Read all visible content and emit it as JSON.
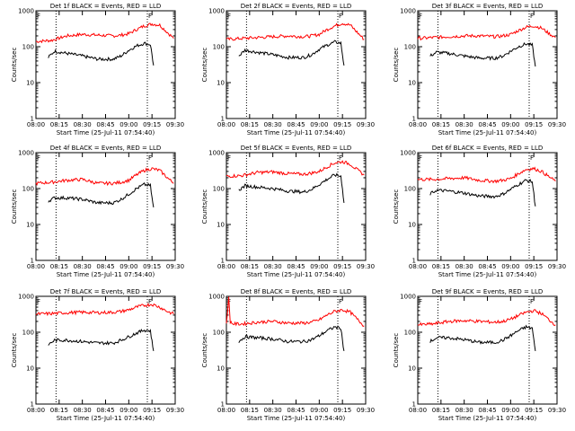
{
  "chart_data": [
    {
      "type": "line",
      "title": "Det 1f BLACK = Events, RED = LLD",
      "xlabel": "Start Time (25-Jul-11 07:54:40)",
      "ylabel": "Counts/sec",
      "yscale": "log",
      "ylim": [
        1,
        1000
      ],
      "xlim": [
        0,
        90
      ],
      "xticks": [
        "08:00",
        "08:15",
        "08:30",
        "08:45",
        "09:00",
        "09:15",
        "09:30"
      ],
      "yticks": [
        "1",
        "10",
        "100",
        "1000"
      ],
      "markers": [
        "F",
        "F"
      ],
      "series": [
        {
          "color": "#ff0000",
          "x": [
            0,
            10,
            20,
            30,
            40,
            50,
            55,
            60,
            65,
            70,
            75,
            80,
            85,
            89
          ],
          "values": [
            140,
            150,
            200,
            220,
            210,
            200,
            210,
            230,
            300,
            380,
            430,
            400,
            250,
            170
          ]
        },
        {
          "color": "#000000",
          "x": [
            8,
            12,
            20,
            30,
            40,
            50,
            55,
            60,
            65,
            70,
            74,
            75,
            76
          ],
          "values": [
            50,
            75,
            65,
            55,
            45,
            45,
            55,
            80,
            105,
            125,
            115,
            60,
            30
          ]
        }
      ]
    },
    {
      "type": "line",
      "title": "Det 2f BLACK = Events, RED = LLD",
      "xlabel": "Start Time (25-Jul-11 07:54:40)",
      "ylabel": "Counts/sec",
      "yscale": "log",
      "ylim": [
        1,
        1000
      ],
      "xlim": [
        0,
        90
      ],
      "xticks": [
        "08:00",
        "08:15",
        "08:30",
        "08:45",
        "09:00",
        "09:15",
        "09:30"
      ],
      "yticks": [
        "1",
        "10",
        "100",
        "1000"
      ],
      "markers": [
        "F",
        "F"
      ],
      "series": [
        {
          "color": "#ff0000",
          "x": [
            0,
            10,
            20,
            30,
            40,
            50,
            55,
            60,
            65,
            70,
            75,
            80,
            85,
            89
          ],
          "values": [
            160,
            170,
            180,
            190,
            200,
            190,
            200,
            220,
            300,
            380,
            450,
            400,
            240,
            160
          ]
        },
        {
          "color": "#000000",
          "x": [
            8,
            12,
            20,
            30,
            40,
            50,
            55,
            60,
            65,
            70,
            74,
            75,
            76
          ],
          "values": [
            55,
            80,
            70,
            60,
            50,
            50,
            60,
            85,
            110,
            135,
            125,
            60,
            30
          ]
        }
      ]
    },
    {
      "type": "line",
      "title": "Det 3f BLACK = Events, RED = LLD",
      "xlabel": "Start Time (25-Jul-11 07:54:40)",
      "ylabel": "Counts/sec",
      "yscale": "log",
      "ylim": [
        1,
        1000
      ],
      "xlim": [
        0,
        90
      ],
      "xticks": [
        "08:00",
        "08:15",
        "08:30",
        "08:45",
        "09:00",
        "09:15",
        "09:30"
      ],
      "yticks": [
        "1",
        "10",
        "100",
        "1000"
      ],
      "markers": [
        "F",
        "F"
      ],
      "series": [
        {
          "color": "#ff0000",
          "x": [
            0,
            10,
            20,
            30,
            40,
            50,
            55,
            60,
            65,
            70,
            75,
            80,
            85,
            89
          ],
          "values": [
            170,
            180,
            190,
            200,
            200,
            190,
            200,
            220,
            280,
            350,
            380,
            330,
            230,
            180
          ]
        },
        {
          "color": "#000000",
          "x": [
            8,
            12,
            20,
            30,
            40,
            50,
            55,
            60,
            65,
            70,
            74,
            75,
            76
          ],
          "values": [
            55,
            70,
            65,
            55,
            48,
            48,
            55,
            75,
            100,
            120,
            110,
            55,
            28
          ]
        }
      ]
    },
    {
      "type": "line",
      "title": "Det 4f BLACK = Events, RED = LLD",
      "xlabel": "Start Time (25-Jul-11 07:54:40)",
      "ylabel": "Counts/sec",
      "yscale": "log",
      "ylim": [
        1,
        1000
      ],
      "xlim": [
        0,
        90
      ],
      "xticks": [
        "08:00",
        "08:15",
        "08:30",
        "08:45",
        "09:00",
        "09:15",
        "09:30"
      ],
      "yticks": [
        "1",
        "10",
        "100",
        "1000"
      ],
      "markers": [
        "F",
        "F"
      ],
      "series": [
        {
          "color": "#ff0000",
          "x": [
            0,
            10,
            20,
            30,
            40,
            50,
            55,
            60,
            65,
            70,
            75,
            80,
            85,
            89
          ],
          "values": [
            140,
            150,
            170,
            180,
            140,
            140,
            150,
            170,
            240,
            320,
            360,
            320,
            200,
            140
          ]
        },
        {
          "color": "#000000",
          "x": [
            8,
            12,
            20,
            30,
            40,
            50,
            55,
            60,
            65,
            70,
            74,
            75,
            76
          ],
          "values": [
            45,
            55,
            55,
            50,
            40,
            40,
            50,
            70,
            100,
            130,
            120,
            55,
            30
          ]
        }
      ]
    },
    {
      "type": "line",
      "title": "Det 5f BLACK = Events, RED = LLD",
      "xlabel": "Start Time (25-Jul-11 07:54:40)",
      "ylabel": "Counts/sec",
      "yscale": "log",
      "ylim": [
        1,
        1000
      ],
      "xlim": [
        0,
        90
      ],
      "xticks": [
        "08:00",
        "08:15",
        "08:30",
        "08:45",
        "09:00",
        "09:15",
        "09:30"
      ],
      "yticks": [
        "1",
        "10",
        "100",
        "1000"
      ],
      "markers": [
        "F",
        "F"
      ],
      "series": [
        {
          "color": "#ff0000",
          "x": [
            0,
            10,
            20,
            30,
            40,
            50,
            55,
            60,
            65,
            70,
            75,
            80,
            85,
            89
          ],
          "values": [
            220,
            230,
            280,
            290,
            260,
            250,
            270,
            300,
            400,
            520,
            560,
            480,
            320,
            240
          ]
        },
        {
          "color": "#000000",
          "x": [
            8,
            12,
            20,
            30,
            40,
            50,
            55,
            60,
            65,
            70,
            74,
            75,
            76
          ],
          "values": [
            90,
            120,
            110,
            100,
            85,
            80,
            95,
            130,
            180,
            240,
            220,
            100,
            40
          ]
        }
      ]
    },
    {
      "type": "line",
      "title": "Det 6f BLACK = Events, RED = LLD",
      "xlabel": "Start Time (25-Jul-11 07:54:40)",
      "ylabel": "Counts/sec",
      "yscale": "log",
      "ylim": [
        1,
        1000
      ],
      "xlim": [
        0,
        90
      ],
      "xticks": [
        "08:00",
        "08:15",
        "08:30",
        "08:45",
        "09:00",
        "09:15",
        "09:30"
      ],
      "yticks": [
        "1",
        "10",
        "100",
        "1000"
      ],
      "markers": [
        "F",
        "F"
      ],
      "series": [
        {
          "color": "#ff0000",
          "x": [
            0,
            10,
            20,
            30,
            40,
            50,
            55,
            60,
            65,
            70,
            75,
            80,
            85,
            89
          ],
          "values": [
            180,
            180,
            190,
            200,
            170,
            160,
            170,
            190,
            260,
            340,
            360,
            300,
            210,
            160
          ]
        },
        {
          "color": "#000000",
          "x": [
            8,
            12,
            20,
            30,
            40,
            50,
            55,
            60,
            65,
            70,
            74,
            75,
            76
          ],
          "values": [
            70,
            90,
            85,
            75,
            62,
            60,
            70,
            95,
            130,
            170,
            155,
            70,
            32
          ]
        }
      ]
    },
    {
      "type": "line",
      "title": "Det 7f BLACK = Events, RED = LLD",
      "xlabel": "Start Time (25-Jul-11 07:54:40)",
      "ylabel": "Counts/sec",
      "yscale": "log",
      "ylim": [
        1,
        1000
      ],
      "xlim": [
        0,
        90
      ],
      "xticks": [
        "08:00",
        "08:15",
        "08:30",
        "08:45",
        "09:00",
        "09:15",
        "09:30"
      ],
      "yticks": [
        "1",
        "10",
        "100",
        "1000"
      ],
      "markers": [
        "F",
        "F"
      ],
      "series": [
        {
          "color": "#ff0000",
          "x": [
            0,
            10,
            20,
            30,
            40,
            50,
            55,
            60,
            65,
            70,
            75,
            80,
            85,
            89
          ],
          "values": [
            320,
            330,
            350,
            360,
            350,
            360,
            380,
            420,
            500,
            560,
            600,
            500,
            380,
            320
          ]
        },
        {
          "color": "#000000",
          "x": [
            8,
            12,
            20,
            30,
            40,
            50,
            55,
            60,
            65,
            70,
            74,
            75,
            76
          ],
          "values": [
            45,
            60,
            60,
            55,
            50,
            50,
            60,
            75,
            95,
            115,
            110,
            55,
            30
          ]
        }
      ]
    },
    {
      "type": "line",
      "title": "Det 8f BLACK = Events, RED = LLD",
      "xlabel": "Start Time (25-Jul-11 07:54:40)",
      "ylabel": "Counts/sec",
      "yscale": "log",
      "ylim": [
        1,
        1000
      ],
      "xlim": [
        0,
        90
      ],
      "xticks": [
        "08:00",
        "08:15",
        "08:30",
        "08:45",
        "09:00",
        "09:15",
        "09:30"
      ],
      "yticks": [
        "1",
        "10",
        "100",
        "1000"
      ],
      "markers": [
        "F",
        "F"
      ],
      "series": [
        {
          "color": "#ff0000",
          "x": [
            0,
            1.5,
            2.5,
            3.5,
            5,
            10,
            20,
            30,
            40,
            50,
            55,
            60,
            65,
            70,
            75,
            80,
            85,
            89
          ],
          "values": [
            180,
            900,
            200,
            180,
            170,
            170,
            190,
            200,
            180,
            180,
            190,
            220,
            300,
            380,
            420,
            360,
            220,
            150
          ]
        },
        {
          "color": "#000000",
          "x": [
            8,
            12,
            20,
            30,
            40,
            50,
            55,
            60,
            65,
            70,
            74,
            75,
            76
          ],
          "values": [
            55,
            75,
            70,
            65,
            55,
            55,
            62,
            80,
            110,
            140,
            130,
            60,
            30
          ]
        }
      ]
    },
    {
      "type": "line",
      "title": "Det 9f BLACK = Events, RED = LLD",
      "xlabel": "Start Time (25-Jul-11 07:54:40)",
      "ylabel": "Counts/sec",
      "yscale": "log",
      "ylim": [
        1,
        1000
      ],
      "xlim": [
        0,
        90
      ],
      "xticks": [
        "08:00",
        "08:15",
        "08:30",
        "08:45",
        "09:00",
        "09:15",
        "09:30"
      ],
      "yticks": [
        "1",
        "10",
        "100",
        "1000"
      ],
      "markers": [
        "F",
        "F"
      ],
      "series": [
        {
          "color": "#ff0000",
          "x": [
            0,
            10,
            20,
            30,
            40,
            50,
            55,
            60,
            65,
            70,
            75,
            80,
            85,
            89
          ],
          "values": [
            160,
            170,
            200,
            210,
            200,
            190,
            200,
            230,
            290,
            360,
            400,
            330,
            220,
            160
          ]
        },
        {
          "color": "#000000",
          "x": [
            8,
            12,
            20,
            30,
            40,
            50,
            55,
            60,
            65,
            70,
            74,
            75,
            76
          ],
          "values": [
            55,
            70,
            70,
            62,
            52,
            52,
            60,
            80,
            110,
            140,
            130,
            60,
            30
          ]
        }
      ]
    }
  ]
}
